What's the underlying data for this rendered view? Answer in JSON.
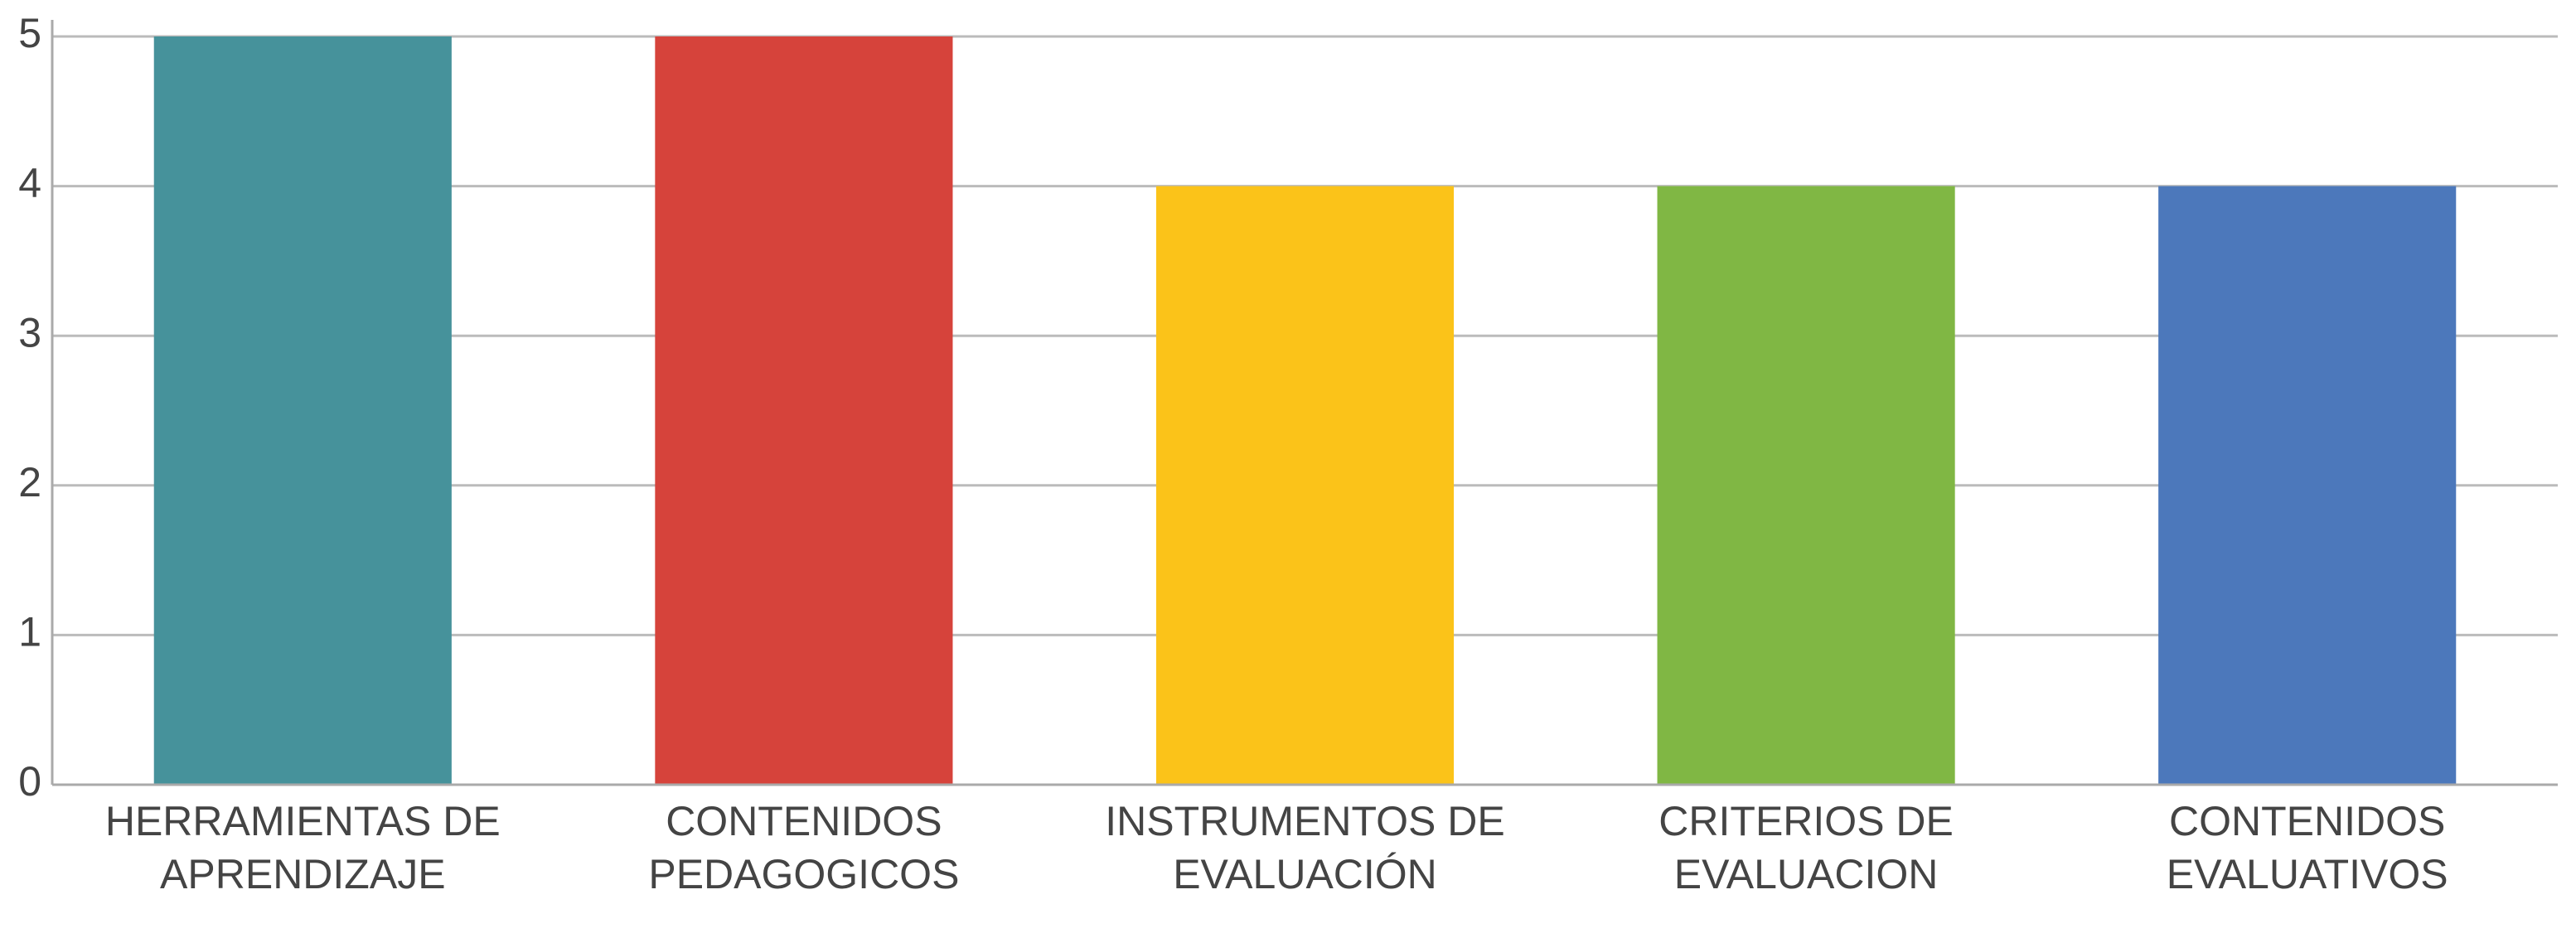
{
  "chart_data": {
    "type": "bar",
    "categories": [
      "HERRAMIENTAS DE APRENDIZAJE",
      "CONTENIDOS PEDAGOGICOS",
      "INSTRUMENTOS DE EVALUACIÓN",
      "CRITERIOS DE EVALUACION",
      "CONTENIDOS EVALUATIVOS"
    ],
    "values": [
      5,
      5,
      4,
      4,
      4
    ],
    "colors": [
      "#46929b",
      "#d6433b",
      "#fbc319",
      "#80b744",
      "#4c78bb"
    ],
    "ylim": [
      0,
      5
    ],
    "yticks": [
      0,
      1,
      2,
      3,
      4,
      5
    ],
    "grid": true
  }
}
